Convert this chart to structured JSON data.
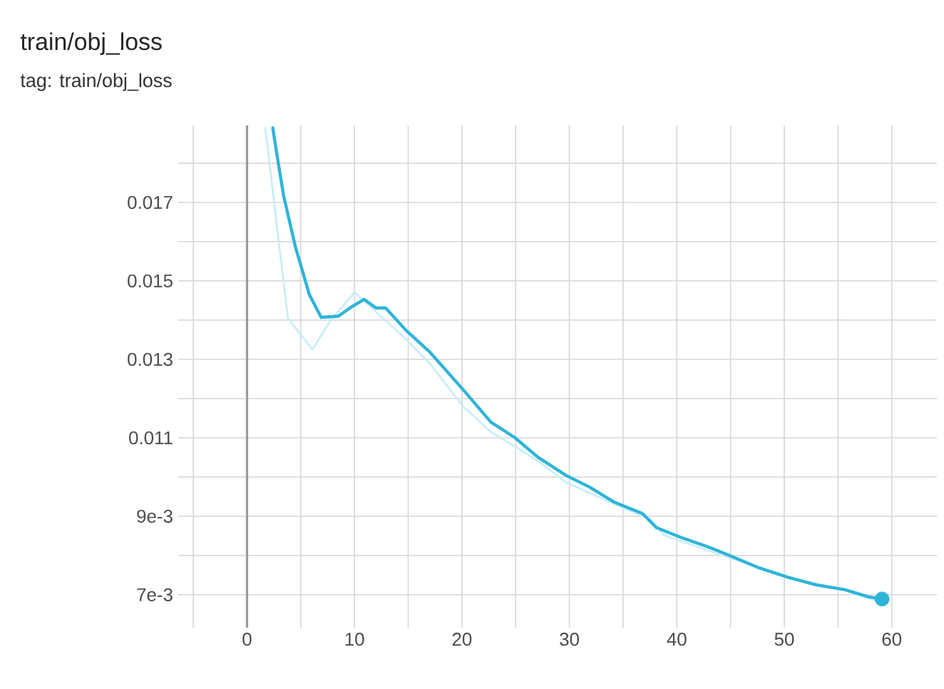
{
  "chart_data": {
    "type": "line",
    "title": "train/obj_loss",
    "subtitle": "tag: train/obj_loss",
    "xlim": [
      -6.4,
      64.2
    ],
    "ylim": [
      0.00616,
      0.01896
    ],
    "xticks": [
      {
        "value": -5,
        "label": null
      },
      0,
      {
        "value": 5,
        "label": null
      },
      10,
      {
        "value": 15,
        "label": null
      },
      20,
      {
        "value": 25,
        "label": null
      },
      30,
      {
        "value": 35,
        "label": null
      },
      40,
      {
        "value": 45,
        "label": null
      },
      50,
      {
        "value": 55,
        "label": null
      },
      60
    ],
    "yticks": [
      {
        "value": 0.007,
        "label": "7e-3"
      },
      {
        "value": 0.008,
        "label": null
      },
      {
        "value": 0.009,
        "label": "9e-3"
      },
      {
        "value": 0.01,
        "label": null
      },
      0.011,
      {
        "value": 0.012,
        "label": null
      },
      0.013,
      {
        "value": 0.014,
        "label": null
      },
      0.015,
      {
        "value": 0.016,
        "label": null
      },
      0.017,
      {
        "value": 0.018,
        "label": null
      }
    ],
    "grid": true,
    "ref_lines": [
      {
        "axis": "x",
        "value": 0,
        "color": "#9a9a9a"
      }
    ],
    "series": [
      {
        "color": "#c9eef8",
        "x": [
          1.7,
          3.8,
          6.1,
          7.6,
          10.0,
          12.2,
          14.8,
          17.0,
          20.1,
          22.7,
          27.1,
          29.7,
          35.2,
          37.5,
          38.8,
          45.1,
          51.2,
          55.6,
          58.7
        ],
        "values": [
          0.0189,
          0.01405,
          0.01325,
          0.01392,
          0.01471,
          0.01416,
          0.01351,
          0.0129,
          0.0118,
          0.01115,
          0.01041,
          0.00986,
          0.00919,
          0.00893,
          0.00852,
          0.00792,
          0.00738,
          0.00713,
          0.00683
        ]
      },
      {
        "color": "#2eb4d8",
        "x": [
          2.4,
          2.6,
          3.4,
          4.5,
          5.8,
          6.9,
          8.5,
          9.8,
          10.9,
          12.0,
          12.9,
          14.8,
          17.0,
          20.1,
          22.7,
          24.9,
          27.1,
          29.7,
          31.9,
          34.1,
          36.8,
          38.1,
          40.3,
          42.9,
          45.1,
          47.7,
          50.4,
          53.0,
          55.6,
          57.8,
          59.1
        ],
        "values": [
          0.0189,
          0.01853,
          0.01718,
          0.01587,
          0.01465,
          0.01407,
          0.0141,
          0.01435,
          0.01453,
          0.01431,
          0.01431,
          0.01374,
          0.01319,
          0.01223,
          0.0114,
          0.01101,
          0.0105,
          0.01004,
          0.00974,
          0.00937,
          0.00907,
          0.00871,
          0.00847,
          0.00822,
          0.00798,
          0.00768,
          0.00744,
          0.00725,
          0.00713,
          0.00695,
          0.00689
        ]
      },
      {
        "type": "scatter",
        "color": "#2eb4d8",
        "x": [
          59.1
        ],
        "values": [
          0.00689
        ]
      }
    ]
  }
}
